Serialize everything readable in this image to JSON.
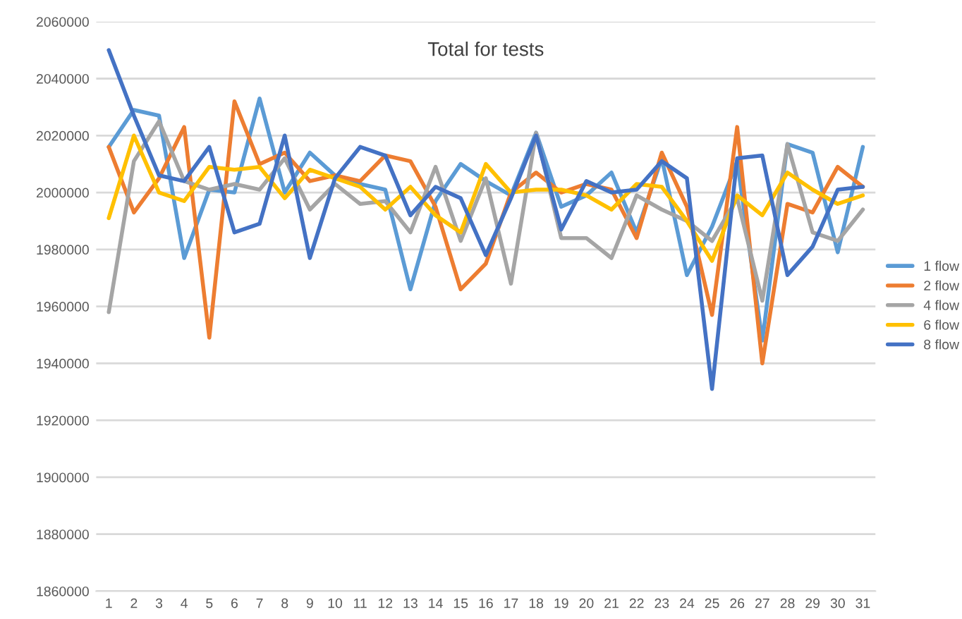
{
  "chart_data": {
    "type": "line",
    "title": "Total for tests",
    "categories": [
      "1",
      "2",
      "3",
      "4",
      "5",
      "6",
      "7",
      "8",
      "9",
      "10",
      "11",
      "12",
      "13",
      "14",
      "15",
      "16",
      "17",
      "18",
      "19",
      "20",
      "21",
      "22",
      "23",
      "24",
      "25",
      "26",
      "27",
      "28",
      "29",
      "30",
      "31"
    ],
    "series": [
      {
        "name": "1 flow",
        "color": "#5b9bd5",
        "values": [
          2016000,
          2029000,
          2027000,
          1977000,
          2001000,
          2000000,
          2033000,
          2000000,
          2014000,
          2006000,
          2003000,
          2001000,
          1966000,
          1997000,
          2010000,
          2004000,
          1999000,
          2021000,
          1995000,
          1999000,
          2007000,
          1986000,
          2012000,
          1971000,
          1988000,
          2011000,
          1948000,
          2017000,
          2014000,
          1979000,
          2016000
        ]
      },
      {
        "name": "2 flow",
        "color": "#ed7d31",
        "values": [
          2016000,
          1993000,
          2005000,
          2023000,
          1949000,
          2032000,
          2010000,
          2014000,
          2004000,
          2006000,
          2004000,
          2013000,
          2011000,
          1995000,
          1966000,
          1975000,
          2000000,
          2007000,
          2000000,
          2003000,
          2001000,
          1984000,
          2014000,
          1995000,
          1957000,
          2023000,
          1940000,
          1996000,
          1993000,
          2009000,
          2002000
        ]
      },
      {
        "name": "4 flow",
        "color": "#a5a5a5",
        "values": [
          1958000,
          2011000,
          2025000,
          2004000,
          2001000,
          2003000,
          2001000,
          2012000,
          1994000,
          2003000,
          1996000,
          1997000,
          1986000,
          2009000,
          1983000,
          2005000,
          1968000,
          2021000,
          1984000,
          1984000,
          1977000,
          1999000,
          1994000,
          1990000,
          1983000,
          1998000,
          1962000,
          2017000,
          1986000,
          1983000,
          1994000
        ]
      },
      {
        "name": "6 flow",
        "color": "#ffc000",
        "values": [
          1991000,
          2020000,
          2000000,
          1997000,
          2009000,
          2008000,
          2009000,
          1998000,
          2008000,
          2005000,
          2002000,
          1994000,
          2002000,
          1992000,
          1986000,
          2010000,
          2000000,
          2001000,
          2001000,
          1999000,
          1994000,
          2003000,
          2002000,
          1990000,
          1976000,
          1999000,
          1992000,
          2007000,
          2001000,
          1996000,
          1999000
        ]
      },
      {
        "name": "8 flow",
        "color": "#4472c4",
        "values": [
          2050000,
          2027000,
          2006000,
          2004000,
          2016000,
          1986000,
          1989000,
          2020000,
          1977000,
          2005000,
          2016000,
          2013000,
          1992000,
          2002000,
          1998000,
          1978000,
          1998000,
          2020000,
          1987000,
          2004000,
          2000000,
          2001000,
          2011000,
          2005000,
          1931000,
          2012000,
          2013000,
          1971000,
          1981000,
          2001000,
          2002000
        ]
      }
    ],
    "ylim": [
      1860000,
      2060000
    ],
    "yticks": [
      1860000,
      1880000,
      1900000,
      1920000,
      1940000,
      1960000,
      1980000,
      2000000,
      2020000,
      2040000,
      2060000
    ],
    "grid": "y",
    "legend": "right",
    "marker": "none",
    "line_style": "solid"
  }
}
